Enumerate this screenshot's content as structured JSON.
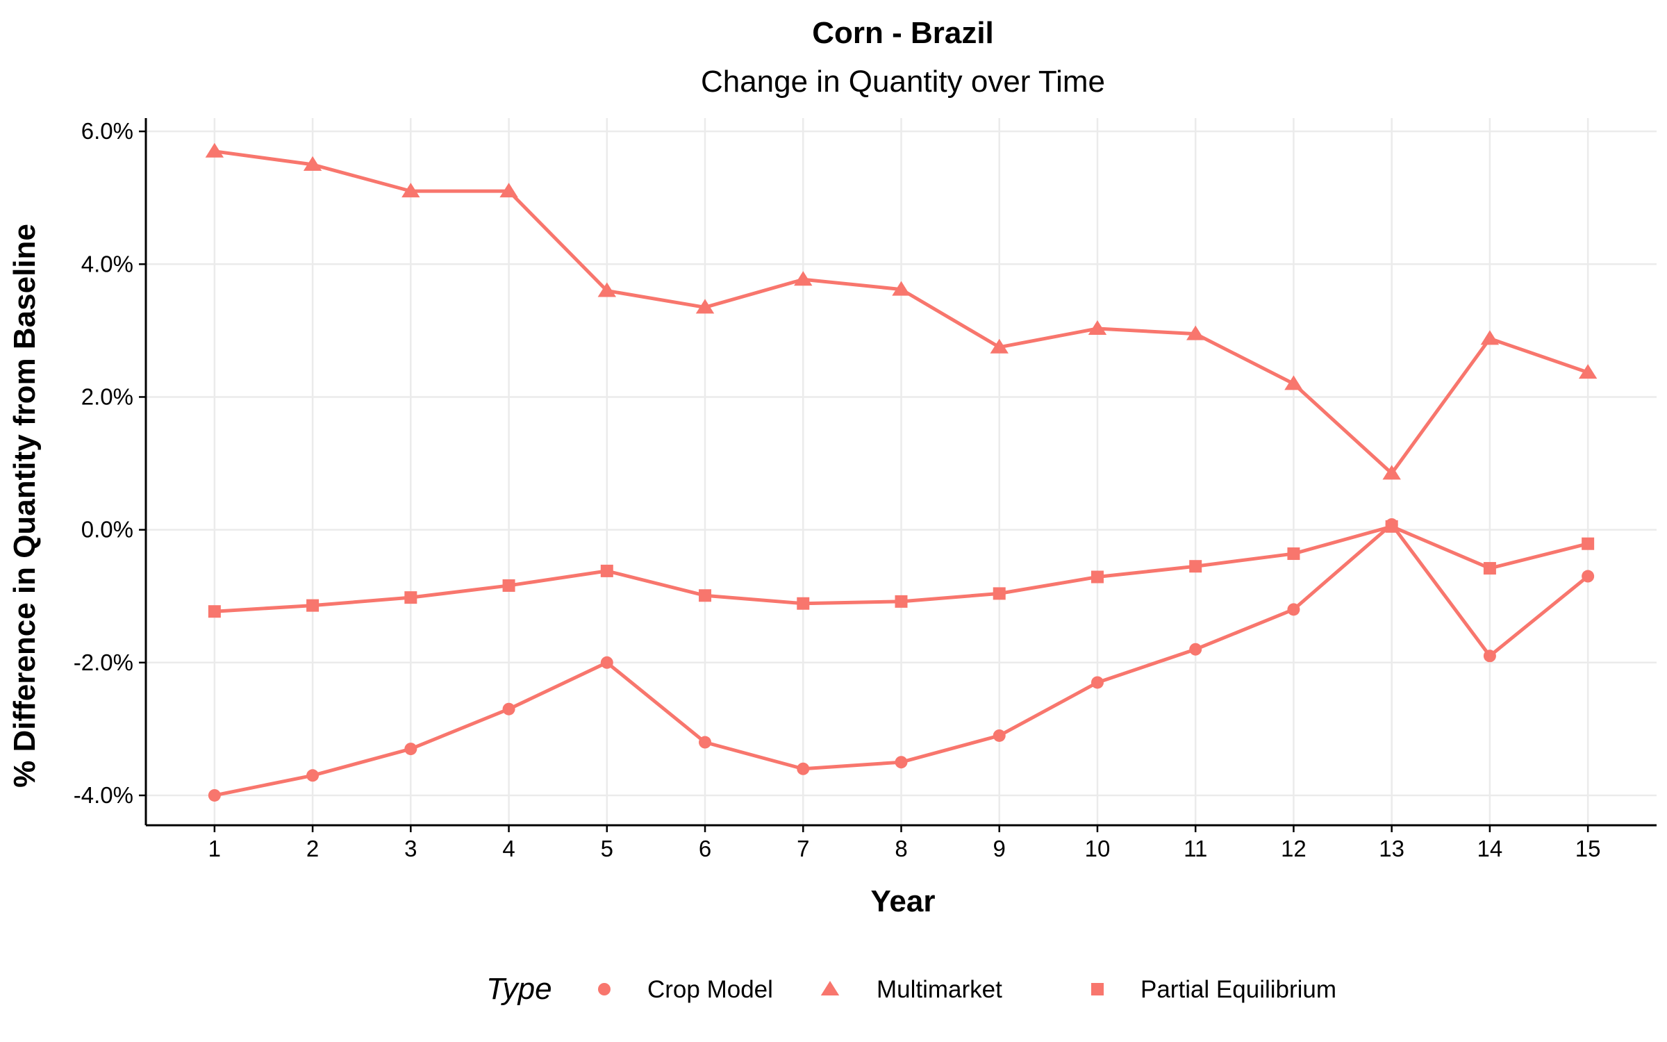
{
  "chart_data": {
    "type": "line",
    "title": "Corn - Brazil",
    "subtitle": "Change in Quantity over Time",
    "xlabel": "Year",
    "ylabel": "% Difference in Quantity from Baseline",
    "x": [
      1,
      2,
      3,
      4,
      5,
      6,
      7,
      8,
      9,
      10,
      11,
      12,
      13,
      14,
      15
    ],
    "x_tick_labels": [
      "1",
      "2",
      "3",
      "4",
      "5",
      "6",
      "7",
      "8",
      "9",
      "10",
      "11",
      "12",
      "13",
      "14",
      "15"
    ],
    "y_ticks": [
      -4.0,
      -2.0,
      0.0,
      2.0,
      4.0,
      6.0
    ],
    "y_tick_labels": [
      "-4.0%",
      "-2.0%",
      "0.0%",
      "2.0%",
      "4.0%",
      "6.0%"
    ],
    "xlim": [
      0.3,
      15.7
    ],
    "ylim": [
      -4.45,
      6.2
    ],
    "grid": true,
    "legend_position": "bottom",
    "legend_title": "Type",
    "series": [
      {
        "name": "Crop Model",
        "marker": "circle",
        "color": "#f8766d",
        "values": [
          -4.0,
          -3.7,
          -3.3,
          -2.7,
          -2.0,
          -3.2,
          -3.6,
          -3.5,
          -3.1,
          -2.3,
          -1.8,
          -1.2,
          0.08,
          -1.9,
          -0.7
        ]
      },
      {
        "name": "Multimarket",
        "marker": "triangle",
        "color": "#f8766d",
        "values": [
          5.7,
          5.5,
          5.1,
          5.1,
          3.6,
          3.35,
          3.77,
          3.62,
          2.75,
          3.03,
          2.95,
          2.2,
          0.85,
          2.88,
          2.37
        ]
      },
      {
        "name": "Partial Equilibrium",
        "marker": "square",
        "color": "#f8766d",
        "values": [
          -1.23,
          -1.14,
          -1.02,
          -0.84,
          -0.62,
          -0.99,
          -1.11,
          -1.08,
          -0.96,
          -0.71,
          -0.55,
          -0.36,
          0.05,
          -0.58,
          -0.21
        ]
      }
    ]
  }
}
